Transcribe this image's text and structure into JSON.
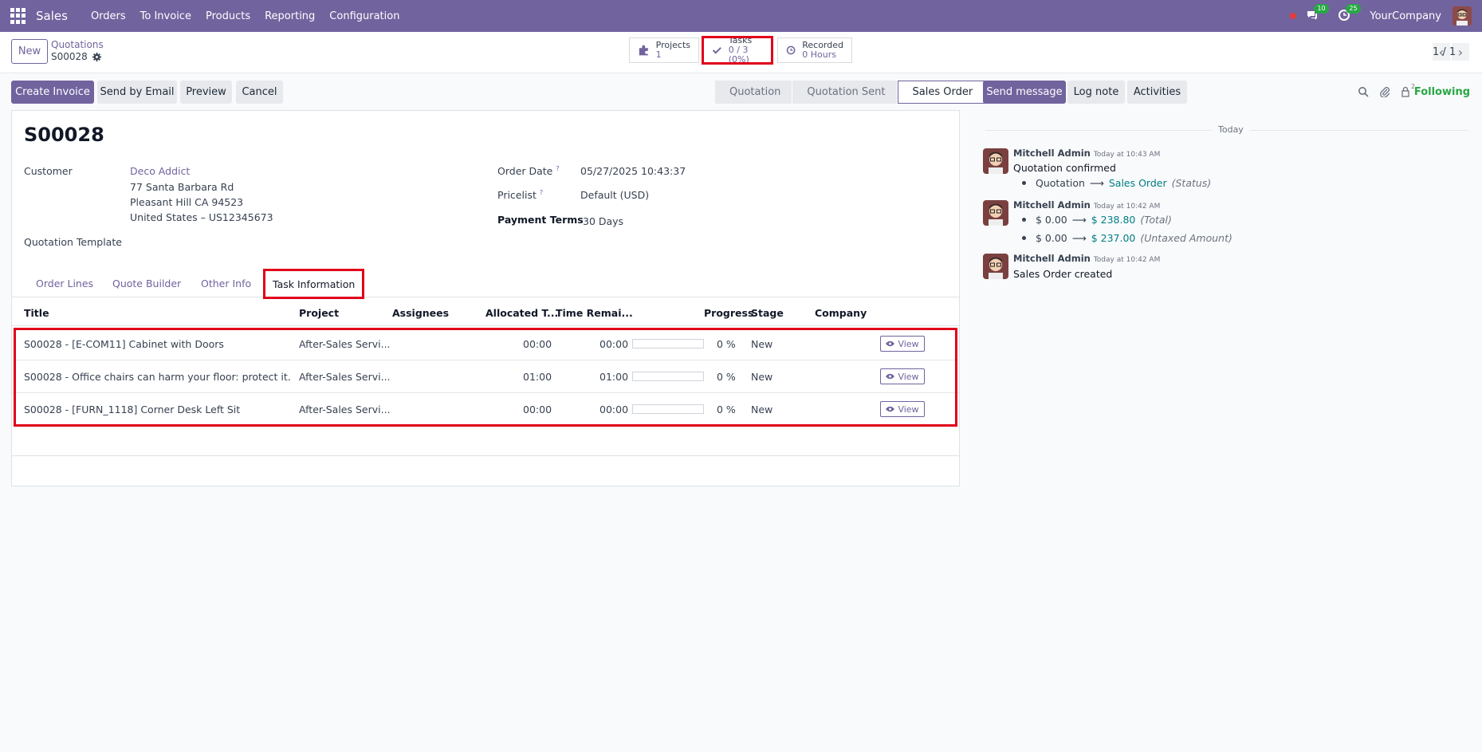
{
  "navbar": {
    "app_name": "Sales",
    "menu": [
      "Orders",
      "To Invoice",
      "Products",
      "Reporting",
      "Configuration"
    ],
    "messages_count": "10",
    "activities_count": "25",
    "company": "YourCompany"
  },
  "control": {
    "new_label": "New",
    "breadcrumb_parent": "Quotations",
    "breadcrumb_current": "S00028",
    "smart_buttons": {
      "projects": {
        "label": "Projects",
        "value": "1"
      },
      "tasks": {
        "label": "Tasks",
        "value": "0 / 3 (0%)"
      },
      "recorded": {
        "label": "Recorded",
        "value": "0 Hours"
      }
    },
    "pager": "1 / 1"
  },
  "actions": {
    "create_invoice": "Create Invoice",
    "send_by_email": "Send by Email",
    "preview": "Preview",
    "cancel": "Cancel"
  },
  "statusbar": [
    "Quotation",
    "Quotation Sent",
    "Sales Order"
  ],
  "form": {
    "name": "S00028",
    "customer_label": "Customer",
    "customer_name": "Deco Addict",
    "address_line1": "77 Santa Barbara Rd",
    "address_line2": "Pleasant Hill CA 94523",
    "address_line3": "United States – US12345673",
    "template_label": "Quotation Template",
    "order_date_label": "Order Date",
    "order_date": "05/27/2025 10:43:37",
    "pricelist_label": "Pricelist",
    "pricelist": "Default (USD)",
    "payment_terms_label": "Payment Terms",
    "payment_terms": "30 Days",
    "help_mark": "?"
  },
  "tabs": [
    "Order Lines",
    "Quote Builder",
    "Other Info",
    "Task Information"
  ],
  "task_table": {
    "headers": [
      "Title",
      "Project",
      "Assignees",
      "Allocated T...",
      "Time Remai...",
      "Progress",
      "Stage",
      "Company"
    ],
    "rows": [
      {
        "title": "S00028 - [E-COM11] Cabinet with Doors",
        "project": "After-Sales Servi...",
        "allocated": "00:00",
        "remaining": "00:00",
        "progress": "0 %",
        "progress_value": 0,
        "stage": "New",
        "action": "View"
      },
      {
        "title": "S00028 - Office chairs can harm your floor: protect it.",
        "project": "After-Sales Servi...",
        "allocated": "01:00",
        "remaining": "01:00",
        "progress": "0 %",
        "progress_value": 0,
        "stage": "New",
        "action": "View"
      },
      {
        "title": "S00028 - [FURN_1118] Corner Desk Left Sit",
        "project": "After-Sales Servi...",
        "allocated": "00:00",
        "remaining": "00:00",
        "progress": "0 %",
        "progress_value": 0,
        "stage": "New",
        "action": "View"
      }
    ]
  },
  "chatter": {
    "send_message": "Send message",
    "log_note": "Log note",
    "activities": "Activities",
    "followers_count": "2",
    "following": "Following",
    "date_divider": "Today",
    "messages": [
      {
        "author": "Mitchell Admin",
        "date": "Today at 10:43 AM",
        "body": "Quotation confirmed",
        "changes": [
          {
            "old": "Quotation",
            "new": "Sales Order",
            "field": "(Status)"
          }
        ]
      },
      {
        "author": "Mitchell Admin",
        "date": "Today at 10:42 AM",
        "body": "",
        "changes": [
          {
            "old": "$ 0.00",
            "new": "$ 238.80",
            "field": "(Total)"
          },
          {
            "old": "$ 0.00",
            "new": "$ 237.00",
            "field": "(Untaxed Amount)"
          }
        ]
      },
      {
        "author": "Mitchell Admin",
        "date": "Today at 10:42 AM",
        "body": "Sales Order created",
        "changes": []
      }
    ]
  },
  "colors": {
    "brand": "#71639e",
    "highlight": "#e0001b",
    "following": "#28a745",
    "tracking_new": "#017e84"
  }
}
